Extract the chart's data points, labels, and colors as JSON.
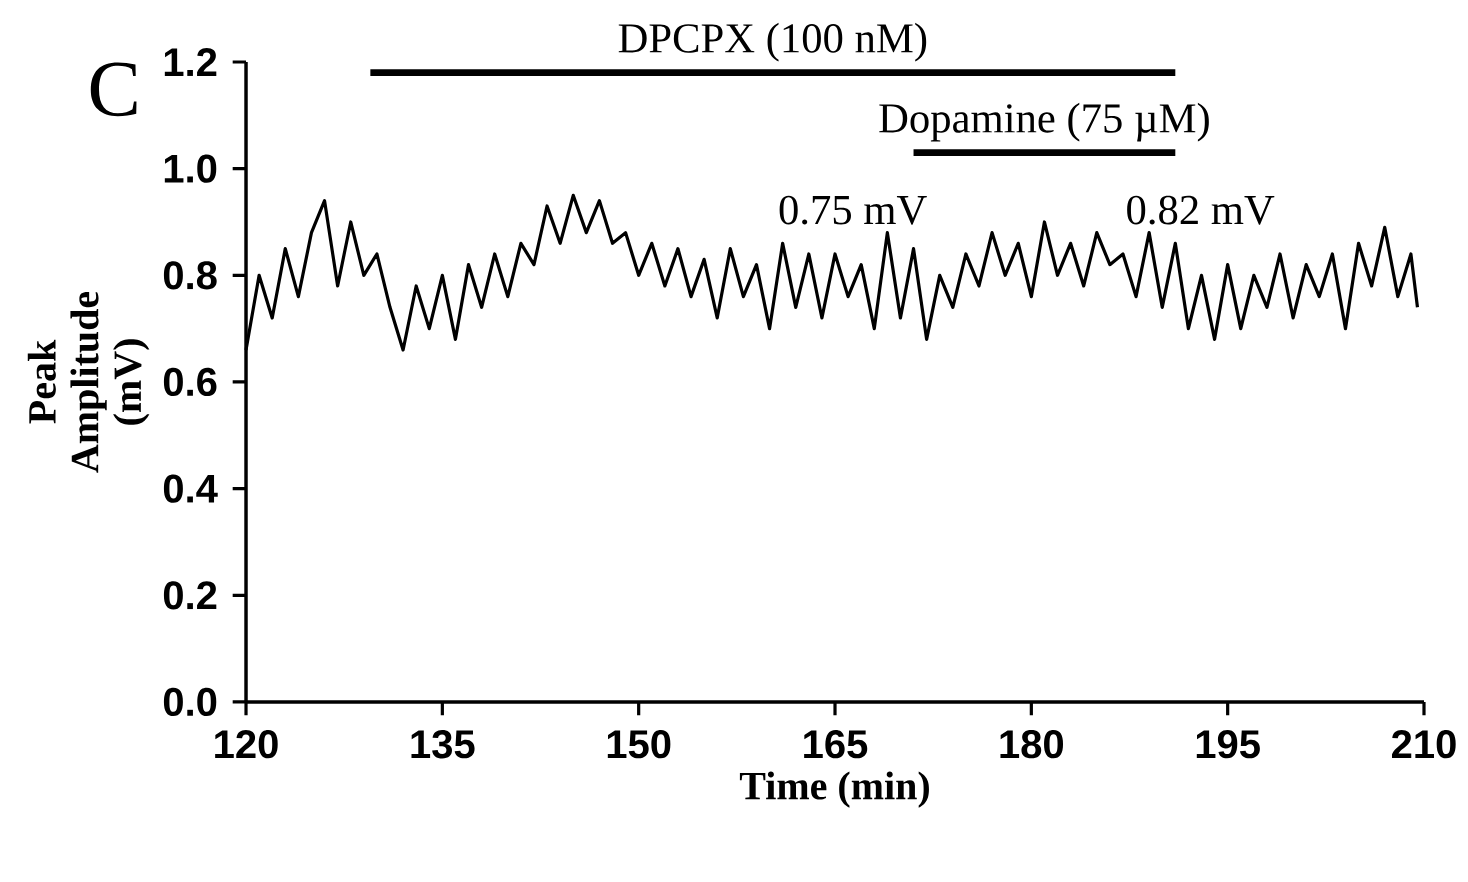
{
  "chart_data": {
    "type": "line",
    "xlabel": "Time (min)",
    "ylabel": "Peak Amplitude (mV)",
    "xlim": [
      120,
      210
    ],
    "xticks": [
      120,
      135,
      150,
      165,
      180,
      195,
      210
    ],
    "ylim": [
      0,
      1.2
    ],
    "yticks": [
      {
        "value": 0,
        "label": "0.0"
      },
      {
        "value": 0.2,
        "label": "0.2"
      },
      {
        "value": 0.4,
        "label": "0.4"
      },
      {
        "value": 0.6,
        "label": "0.6"
      },
      {
        "value": 0.8,
        "label": "0.8"
      },
      {
        "value": 1.0,
        "label": "1.0"
      },
      {
        "value": 1.2,
        "label": "1.2"
      }
    ],
    "annotations": [
      "C",
      "0.75 mV",
      "0.82 mV",
      {
        "text": "DPCPX (100 nM)",
        "x": 160.25,
        "y": 1.18
      },
      {
        "text": "Dopamine (75 µM)",
        "x": 181,
        "y": 1.03
      }
    ],
    "x": [
      120,
      121,
      122,
      123,
      124,
      125,
      126,
      127,
      128,
      129,
      130,
      131,
      132,
      133,
      134,
      135,
      136,
      137,
      138,
      139,
      140,
      141,
      142,
      143,
      144,
      145,
      146,
      147,
      148,
      149,
      150,
      151,
      152,
      153,
      154,
      155,
      156,
      157,
      158,
      159,
      160,
      161,
      162,
      163,
      164,
      165,
      166,
      167,
      168,
      169,
      170,
      171,
      172,
      173,
      174,
      175,
      176,
      177,
      178,
      179,
      180,
      181,
      182,
      183,
      184,
      185,
      186,
      187,
      188,
      189,
      190,
      191,
      192,
      193,
      194,
      195,
      196,
      197,
      198,
      199,
      200,
      201,
      202,
      203,
      204,
      205,
      206,
      207,
      208,
      209,
      209.5
    ],
    "series": [
      {
        "color": "#000000",
        "values": [
          0.66,
          0.8,
          0.72,
          0.85,
          0.76,
          0.88,
          0.94,
          0.78,
          0.9,
          0.8,
          0.84,
          0.74,
          0.66,
          0.78,
          0.7,
          0.8,
          0.68,
          0.82,
          0.74,
          0.84,
          0.76,
          0.86,
          0.82,
          0.93,
          0.86,
          0.95,
          0.88,
          0.94,
          0.86,
          0.88,
          0.8,
          0.86,
          0.78,
          0.85,
          0.76,
          0.83,
          0.72,
          0.85,
          0.76,
          0.82,
          0.7,
          0.86,
          0.74,
          0.84,
          0.72,
          0.84,
          0.76,
          0.82,
          0.7,
          0.88,
          0.72,
          0.85,
          0.68,
          0.8,
          0.74,
          0.84,
          0.78,
          0.88,
          0.8,
          0.86,
          0.76,
          0.9,
          0.8,
          0.86,
          0.78,
          0.88,
          0.82,
          0.84,
          0.76,
          0.88,
          0.74,
          0.86,
          0.7,
          0.8,
          0.68,
          0.82,
          0.7,
          0.8,
          0.74,
          0.84,
          0.72,
          0.82,
          0.76,
          0.84,
          0.7,
          0.86,
          0.78,
          0.89,
          0.76,
          0.84,
          0.74
        ]
      },
      {
        "color": "#000000",
        "x": [
          129.5,
          191
        ],
        "values": [
          1.18,
          1.18
        ]
      },
      {
        "color": "#000000",
        "x": [
          171,
          191
        ],
        "values": [
          1.03,
          1.03
        ]
      }
    ],
    "grid": false,
    "marker": "none",
    "line_style": "solid"
  }
}
